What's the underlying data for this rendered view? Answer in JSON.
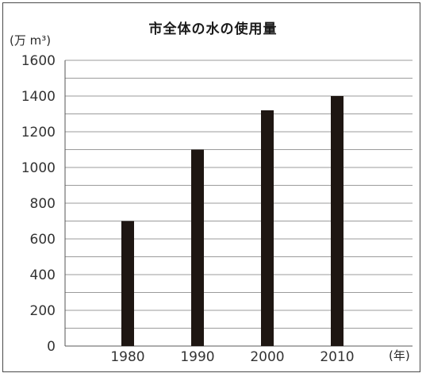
{
  "chart_data": {
    "type": "bar",
    "title": "市全体の水の使用量",
    "ylabel": "(万 m³)",
    "xlabel": "(年)",
    "categories": [
      "1980",
      "1990",
      "2000",
      "2010"
    ],
    "values": [
      700,
      1100,
      1320,
      1400
    ],
    "ylim": [
      0,
      1600
    ],
    "yticks": [
      0,
      200,
      400,
      600,
      800,
      1000,
      1200,
      1400,
      1600
    ],
    "grid": true,
    "bar_color": "#1e1612",
    "grid_color": "#7a7a7a"
  }
}
